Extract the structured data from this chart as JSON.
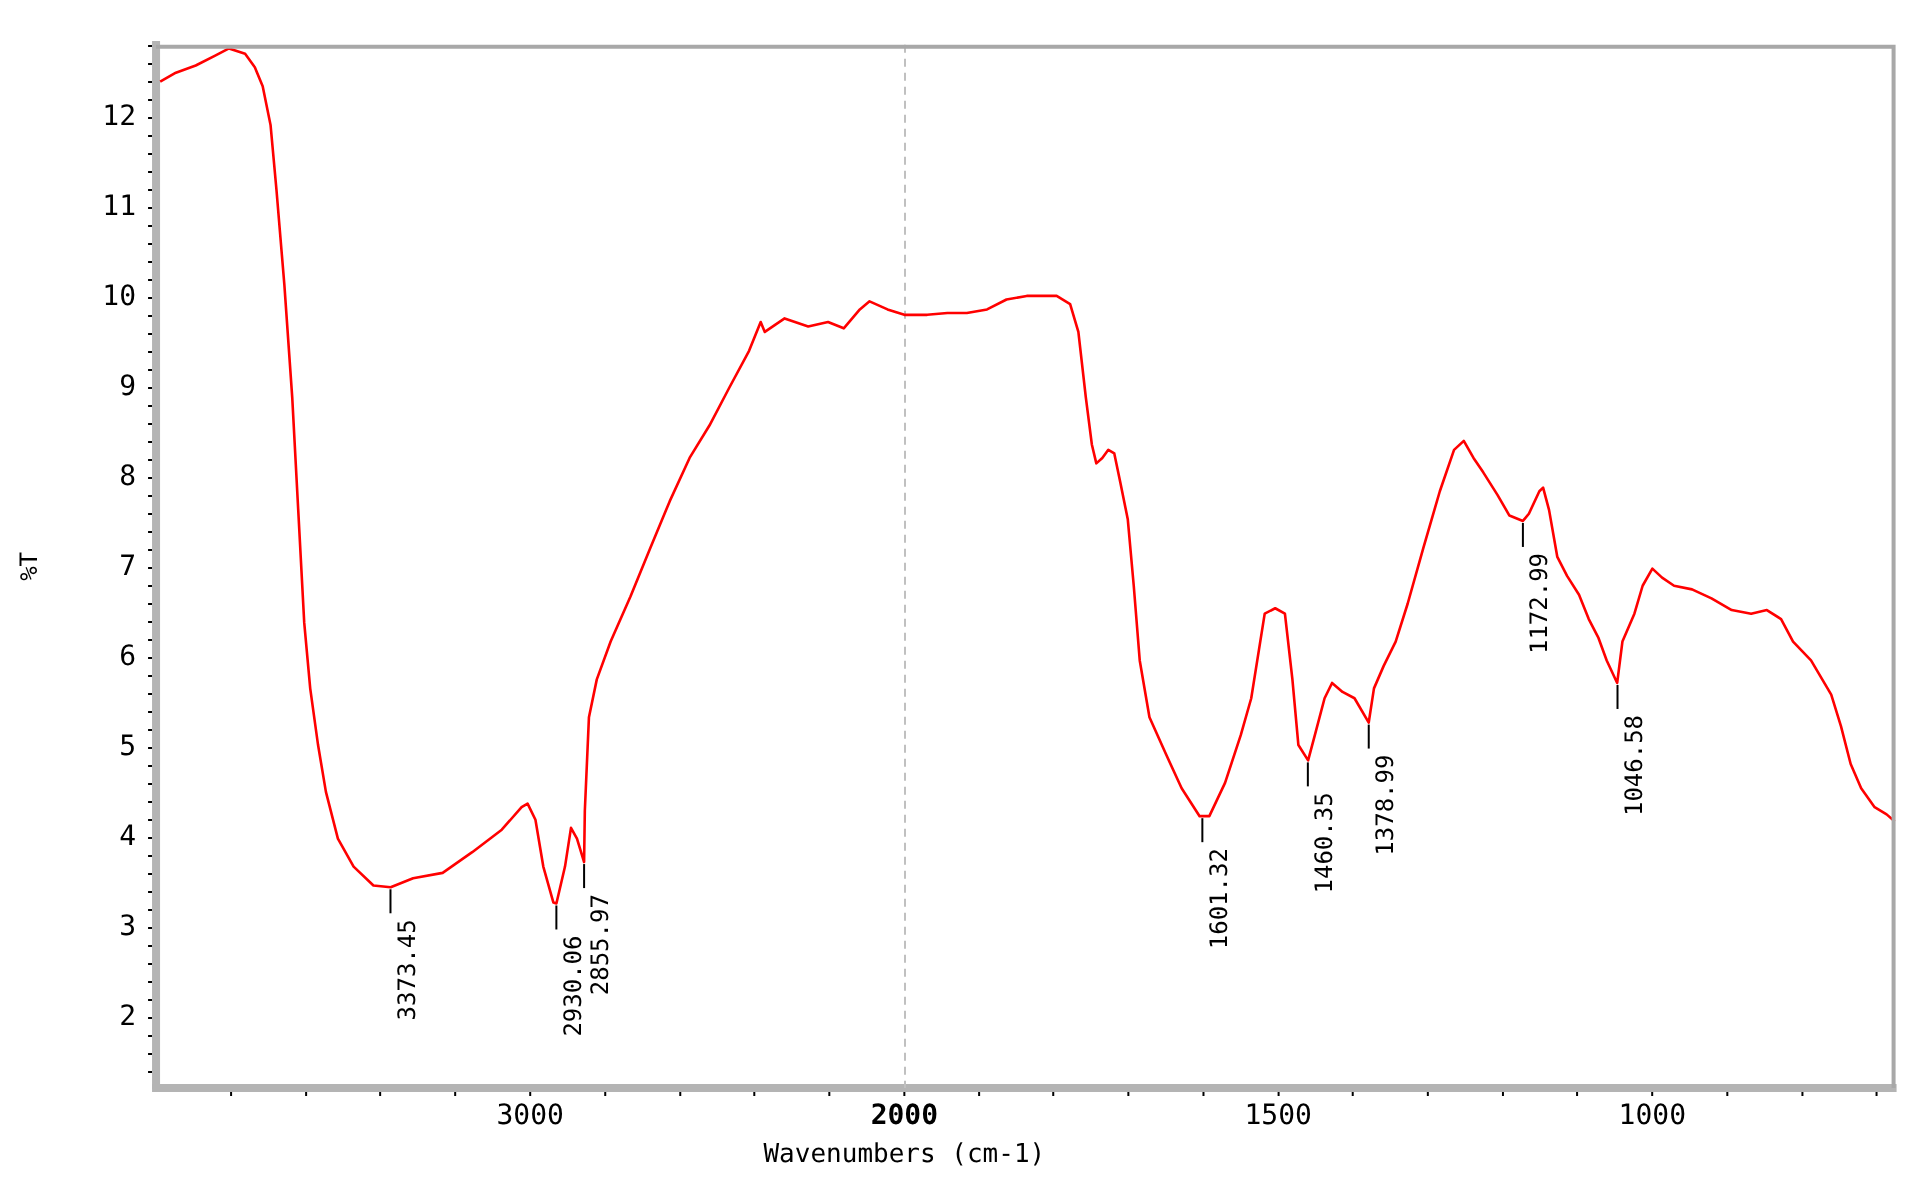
{
  "chart_data": [
    {
      "type": "line",
      "xlabel": "Wavenumbers (cm-1)",
      "ylabel": "%T",
      "xlim": [
        4000,
        2000
      ],
      "ylim": [
        1.22,
        12.81
      ],
      "xticks": [
        {
          "value": 3800,
          "label": null
        },
        {
          "value": 3600,
          "label": null
        },
        {
          "value": 3400,
          "label": null
        },
        {
          "value": 3200,
          "label": null
        },
        3000,
        {
          "value": 2800,
          "label": null
        },
        {
          "value": 2600,
          "label": null
        },
        {
          "value": 2400,
          "label": null
        },
        {
          "value": 2200,
          "label": null
        },
        2000
      ],
      "yticks": [
        {
          "value": 1.4,
          "label": null
        },
        {
          "value": 1.6,
          "label": null
        },
        {
          "value": 1.8,
          "label": null
        },
        2,
        {
          "value": 2.2,
          "label": null
        },
        {
          "value": 2.4,
          "label": null
        },
        {
          "value": 2.6,
          "label": null
        },
        {
          "value": 2.8,
          "label": null
        },
        3,
        {
          "value": 3.2,
          "label": null
        },
        {
          "value": 3.4,
          "label": null
        },
        {
          "value": 3.6,
          "label": null
        },
        {
          "value": 3.8,
          "label": null
        },
        4,
        {
          "value": 4.2,
          "label": null
        },
        {
          "value": 4.4,
          "label": null
        },
        {
          "value": 4.6,
          "label": null
        },
        {
          "value": 4.8,
          "label": null
        },
        5,
        {
          "value": 5.2,
          "label": null
        },
        {
          "value": 5.4,
          "label": null
        },
        {
          "value": 5.6,
          "label": null
        },
        {
          "value": 5.8,
          "label": null
        },
        6,
        {
          "value": 6.2,
          "label": null
        },
        {
          "value": 6.4,
          "label": null
        },
        {
          "value": 6.6,
          "label": null
        },
        {
          "value": 6.8,
          "label": null
        },
        7,
        {
          "value": 7.2,
          "label": null
        },
        {
          "value": 7.4,
          "label": null
        },
        {
          "value": 7.6,
          "label": null
        },
        {
          "value": 7.8,
          "label": null
        },
        8,
        {
          "value": 8.2,
          "label": null
        },
        {
          "value": 8.4,
          "label": null
        },
        {
          "value": 8.6,
          "label": null
        },
        {
          "value": 8.8,
          "label": null
        },
        9,
        {
          "value": 9.2,
          "label": null
        },
        {
          "value": 9.4,
          "label": null
        },
        {
          "value": 9.6,
          "label": null
        },
        {
          "value": 9.8,
          "label": null
        },
        10,
        {
          "value": 10.2,
          "label": null
        },
        {
          "value": 10.4,
          "label": null
        },
        {
          "value": 10.6,
          "label": null
        },
        {
          "value": 10.8,
          "label": null
        },
        11,
        {
          "value": 11.2,
          "label": null
        },
        {
          "value": 11.4,
          "label": null
        },
        {
          "value": 11.6,
          "label": null
        },
        {
          "value": 11.8,
          "label": null
        },
        12,
        {
          "value": 12.2,
          "label": null
        },
        {
          "value": 12.4,
          "label": null
        },
        {
          "value": 12.6,
          "label": null
        },
        {
          "value": 12.8,
          "label": null
        }
      ],
      "grid": false,
      "legend": false,
      "marker": "none",
      "line_style": "solid",
      "series": [
        {
          "color": "#ff0000",
          "x": [
            3989,
            3947,
            3894,
            3842,
            3805,
            3762,
            3736,
            3715,
            3694,
            3678,
            3657,
            3636,
            3620,
            3604,
            3588,
            3567,
            3546,
            3514,
            3472,
            3419,
            3373,
            3313,
            3234,
            3155,
            3076,
            3023,
            3007,
            2986,
            2965,
            2938,
            2930,
            2907,
            2891,
            2875,
            2856,
            2854,
            2843,
            2822,
            2785,
            2732,
            2679,
            2627,
            2574,
            2521,
            2468,
            2415,
            2384,
            2373,
            2320,
            2257,
            2204,
            2162,
            2119,
            2093,
            2045,
            2000
          ],
          "values": [
            12.4,
            12.5,
            12.58,
            12.69,
            12.77,
            12.71,
            12.56,
            12.35,
            11.92,
            11.19,
            10.14,
            8.89,
            7.64,
            6.39,
            5.66,
            5.03,
            4.51,
            3.99,
            3.68,
            3.47,
            3.45,
            3.55,
            3.61,
            3.84,
            4.09,
            4.34,
            4.38,
            4.2,
            3.68,
            3.28,
            3.27,
            3.68,
            4.11,
            3.99,
            3.73,
            4.3,
            5.34,
            5.76,
            6.18,
            6.68,
            7.22,
            7.74,
            8.22,
            8.58,
            9.0,
            9.41,
            9.73,
            9.62,
            9.77,
            9.68,
            9.73,
            9.66,
            9.87,
            9.96,
            9.87,
            9.81
          ]
        }
      ],
      "annotations": [
        {
          "text": "3373.45",
          "x": 3373.45,
          "y": 3.45
        },
        {
          "text": "2930.06",
          "x": 2930.06,
          "y": 3.27
        },
        {
          "text": "2855.97",
          "x": 2855.97,
          "y": 3.73
        }
      ]
    },
    {
      "type": "line",
      "xlim": [
        2000,
        675
      ],
      "ylim": [
        1.22,
        12.81
      ],
      "tick_labels": "x",
      "xticks": [
        {
          "value": 1900,
          "label": null
        },
        {
          "value": 1800,
          "label": null
        },
        {
          "value": 1700,
          "label": null
        },
        {
          "value": 1600,
          "label": null
        },
        1500,
        {
          "value": 1400,
          "label": null
        },
        {
          "value": 1300,
          "label": null
        },
        {
          "value": 1200,
          "label": null
        },
        {
          "value": 1100,
          "label": null
        },
        1000,
        {
          "value": 900,
          "label": null
        },
        {
          "value": 800,
          "label": null
        },
        {
          "value": 700,
          "label": null
        }
      ],
      "grid": false,
      "legend": false,
      "marker": "none",
      "line_style": "solid",
      "ref_lines": [
        {
          "axis": "x",
          "value": 2000,
          "label": null,
          "color": "#c0c0c0",
          "line_style": "dashed"
        }
      ],
      "series": [
        {
          "color": "#ff0000",
          "x": [
            2000,
            1969,
            1942,
            1916,
            1889,
            1863,
            1836,
            1796,
            1778,
            1767,
            1757,
            1749,
            1743,
            1735,
            1727,
            1719,
            1711,
            1701,
            1693,
            1685,
            1672,
            1650,
            1629,
            1605,
            1592,
            1571,
            1550,
            1536,
            1518,
            1504,
            1491,
            1481,
            1473,
            1460,
            1451,
            1438,
            1428,
            1414,
            1398,
            1379,
            1372,
            1359,
            1343,
            1327,
            1306,
            1284,
            1265,
            1252,
            1239,
            1226,
            1207,
            1191,
            1173,
            1165,
            1151,
            1146,
            1138,
            1127,
            1114,
            1098,
            1085,
            1072,
            1061,
            1047,
            1040,
            1024,
            1013,
            1000,
            987,
            971,
            947,
            921,
            894,
            868,
            847,
            828,
            812,
            788,
            761,
            748,
            735,
            721,
            703,
            687,
            676
          ],
          "values": [
            9.81,
            9.81,
            9.83,
            9.83,
            9.87,
            9.98,
            10.02,
            10.02,
            9.93,
            9.62,
            8.89,
            8.37,
            8.16,
            8.22,
            8.31,
            8.27,
            7.95,
            7.54,
            6.8,
            5.97,
            5.34,
            4.93,
            4.55,
            4.24,
            4.24,
            4.61,
            5.14,
            5.55,
            6.49,
            6.55,
            6.49,
            5.76,
            5.03,
            4.86,
            5.14,
            5.55,
            5.72,
            5.62,
            5.55,
            5.28,
            5.66,
            5.91,
            6.18,
            6.6,
            7.22,
            7.85,
            8.31,
            8.41,
            8.22,
            8.06,
            7.81,
            7.58,
            7.52,
            7.6,
            7.85,
            7.89,
            7.64,
            7.12,
            6.91,
            6.7,
            6.43,
            6.22,
            5.97,
            5.72,
            6.18,
            6.49,
            6.8,
            6.99,
            6.89,
            6.8,
            6.76,
            6.66,
            6.53,
            6.49,
            6.53,
            6.43,
            6.18,
            5.97,
            5.59,
            5.24,
            4.82,
            4.55,
            4.34,
            4.26,
            4.18
          ]
        }
      ],
      "annotations": [
        {
          "text": "1601.32",
          "x": 1601.32,
          "y": 4.24
        },
        {
          "text": "1460.35",
          "x": 1460.35,
          "y": 4.86
        },
        {
          "text": "1378.99",
          "x": 1378.99,
          "y": 5.28
        },
        {
          "text": "1172.99",
          "x": 1172.99,
          "y": 7.52
        },
        {
          "text": "1046.58",
          "x": 1046.58,
          "y": 5.72
        }
      ]
    }
  ]
}
